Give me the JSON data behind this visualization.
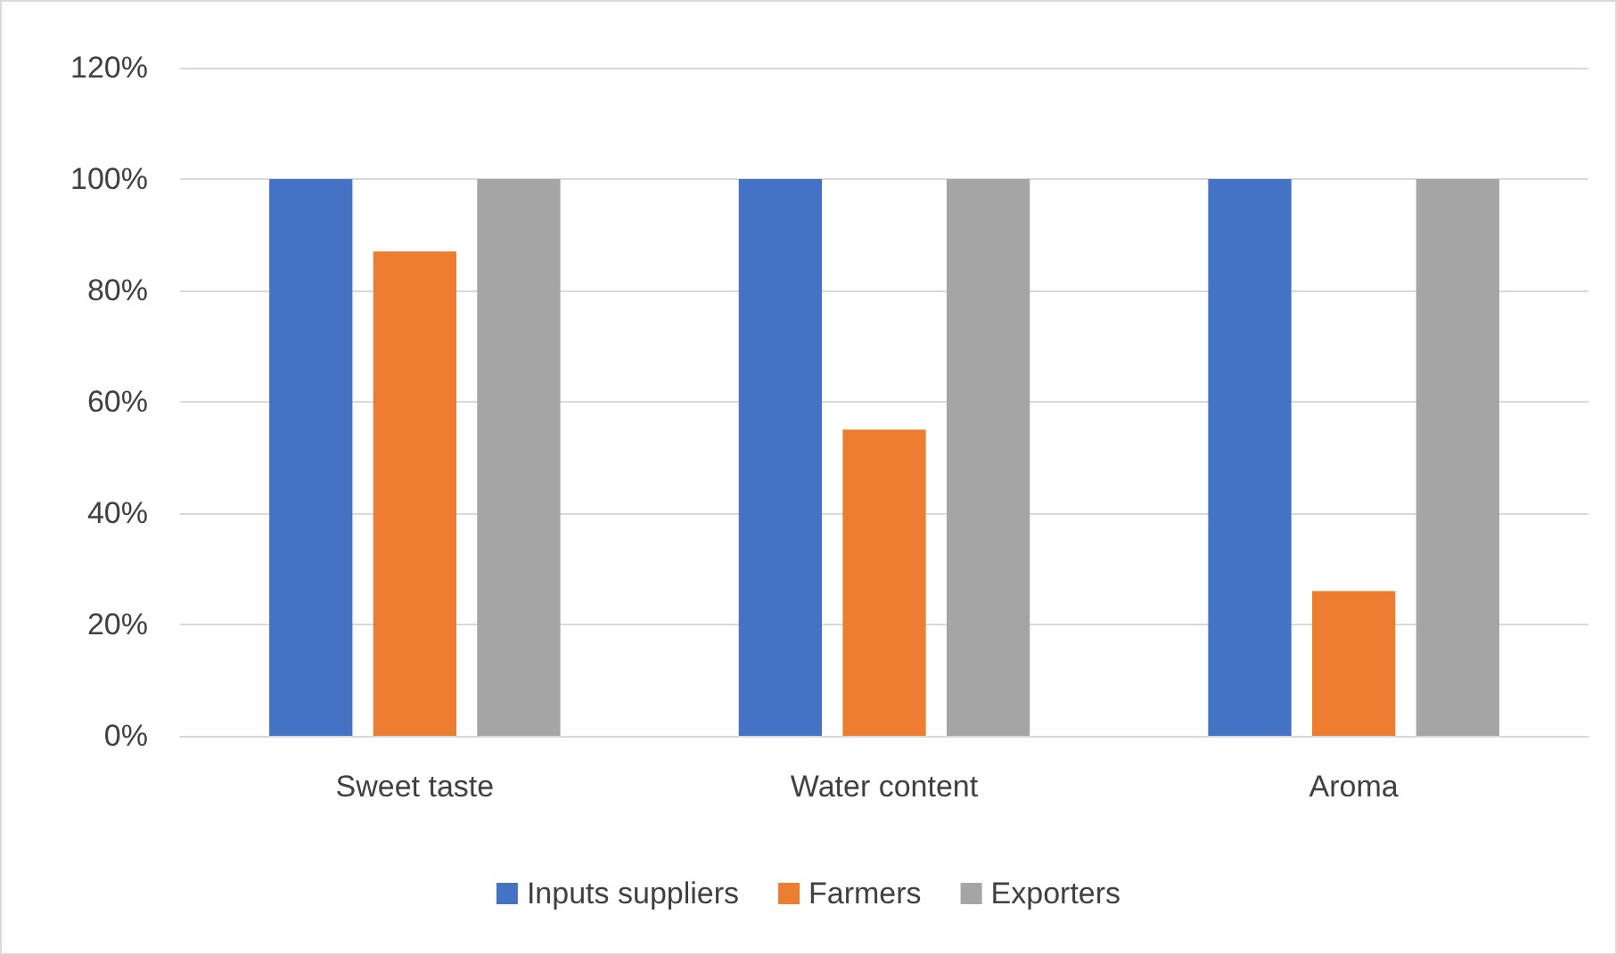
{
  "chart_data": {
    "type": "bar",
    "categories": [
      "Sweet taste",
      "Water content",
      "Aroma"
    ],
    "series": [
      {
        "name": "Inputs suppliers",
        "color": "#4472c4",
        "values": [
          100,
          100,
          100
        ]
      },
      {
        "name": "Farmers",
        "color": "#ed7d31",
        "values": [
          87,
          55,
          26
        ]
      },
      {
        "name": "Exporters",
        "color": "#a5a5a5",
        "values": [
          100,
          100,
          100
        ]
      }
    ],
    "ylim": [
      0,
      120
    ],
    "yticks": [
      {
        "value": 0,
        "label": "0%"
      },
      {
        "value": 20,
        "label": "20%"
      },
      {
        "value": 40,
        "label": "40%"
      },
      {
        "value": 60,
        "label": "60%"
      },
      {
        "value": 80,
        "label": "80%"
      },
      {
        "value": 100,
        "label": "100%"
      },
      {
        "value": 120,
        "label": "120%"
      }
    ],
    "grid": "y",
    "legend": "bottom"
  }
}
